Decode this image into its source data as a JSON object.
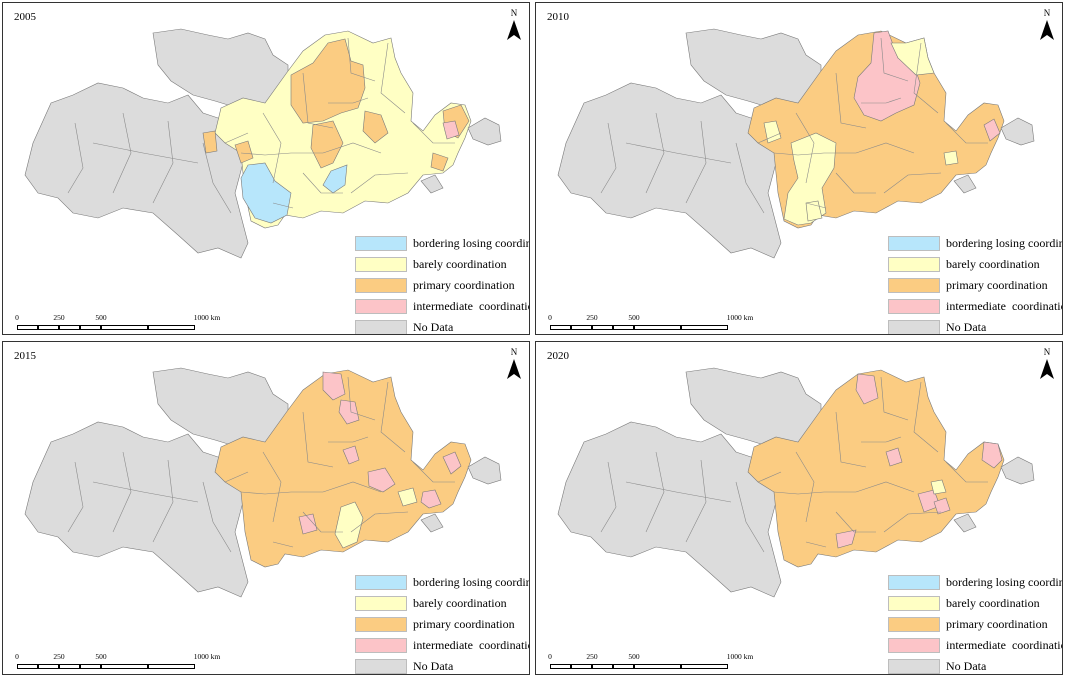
{
  "legend": {
    "items": [
      {
        "label": "bordering losing coordination",
        "color": "#b7e6fb"
      },
      {
        "label": "barely coordination",
        "color": "#ffffc4"
      },
      {
        "label": "primary coordination",
        "color": "#fbcc82"
      },
      {
        "label": "intermediate  coordination",
        "color": "#fcc4c8"
      },
      {
        "label": "No Data",
        "color": "#dcdcdc"
      }
    ]
  },
  "scale": {
    "labels": [
      "0",
      "250",
      "500",
      "1000 km"
    ]
  },
  "north_label": "N",
  "panels": [
    {
      "year": "2005",
      "dominant": "barely",
      "highlights": [
        "primary",
        "bordering"
      ]
    },
    {
      "year": "2010",
      "dominant": "primary",
      "highlights": [
        "intermediate",
        "barely"
      ]
    },
    {
      "year": "2015",
      "dominant": "primary",
      "highlights": [
        "intermediate",
        "barely"
      ]
    },
    {
      "year": "2020",
      "dominant": "primary",
      "highlights": [
        "intermediate"
      ]
    }
  ],
  "colors": {
    "bordering": "#b7e6fb",
    "barely": "#ffffc4",
    "primary": "#fbcc82",
    "intermediate": "#fcc4c8",
    "nodata": "#dcdcdc"
  }
}
